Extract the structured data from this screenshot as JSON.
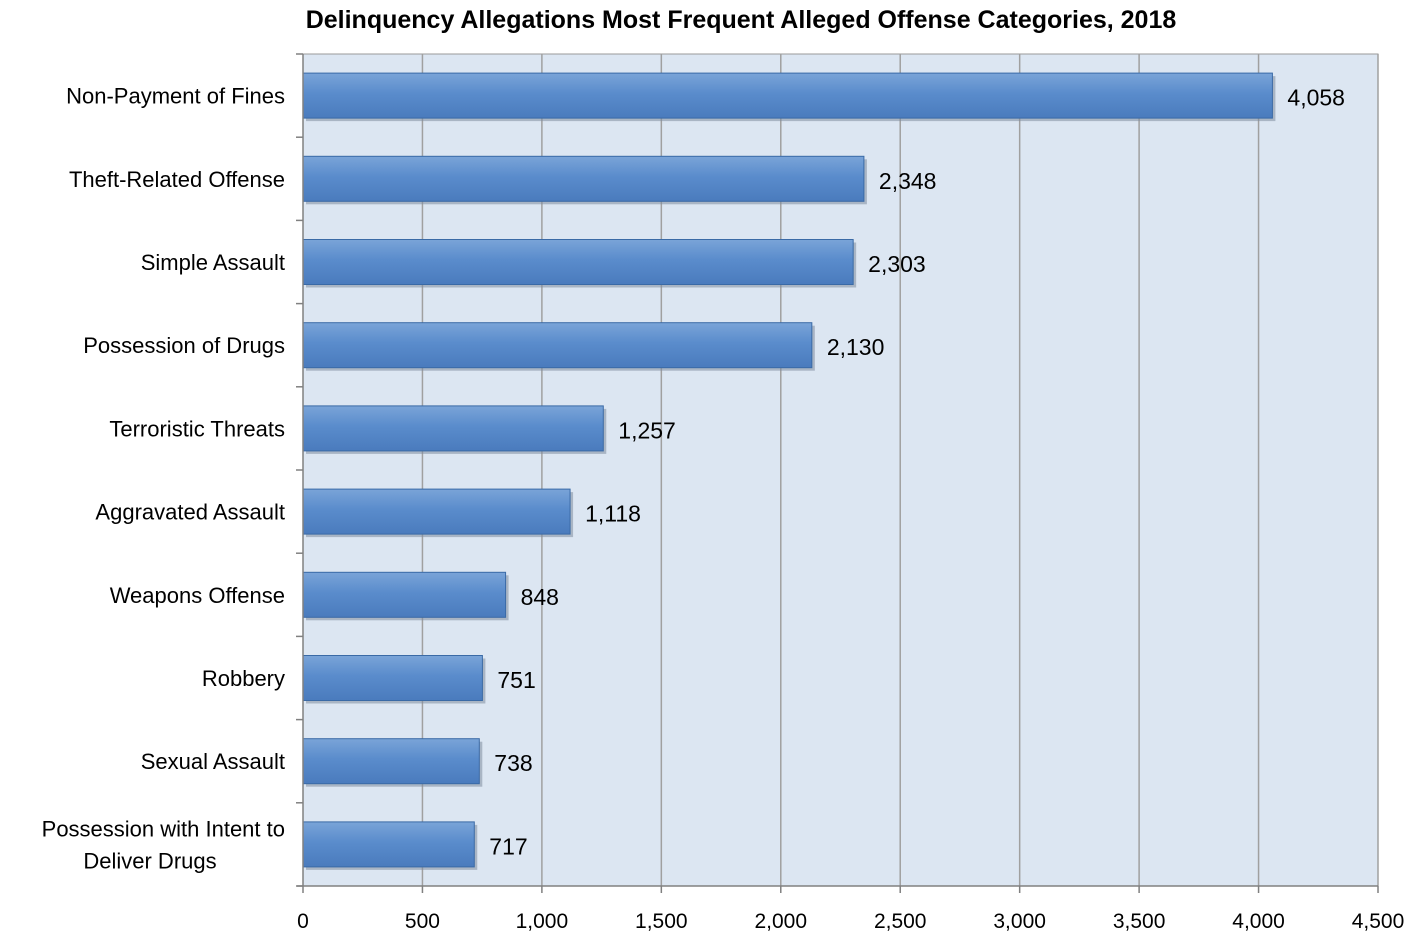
{
  "chart_data": {
    "type": "bar",
    "orientation": "horizontal",
    "title": "Delinquency Allegations Most Frequent Alleged Offense Categories, 2018",
    "xlabel": "",
    "ylabel": "",
    "xlim": [
      0,
      4500
    ],
    "x_ticks": [
      0,
      500,
      1000,
      1500,
      2000,
      2500,
      3000,
      3500,
      4000,
      4500
    ],
    "x_tick_labels": [
      "0",
      "500",
      "1,000",
      "1,500",
      "2,000",
      "2,500",
      "3,000",
      "3,500",
      "4,000",
      "4,500"
    ],
    "grid": "vertical",
    "categories": [
      [
        "Non-Payment of Fines"
      ],
      [
        "Theft-Related Offense"
      ],
      [
        "Simple Assault"
      ],
      [
        "Possession of Drugs"
      ],
      [
        "Terroristic Threats"
      ],
      [
        "Aggravated Assault"
      ],
      [
        "Weapons Offense"
      ],
      [
        "Robbery"
      ],
      [
        "Sexual Assault"
      ],
      [
        "Possession with Intent to",
        "Deliver Drugs"
      ]
    ],
    "values": [
      4058,
      2348,
      2303,
      2130,
      1257,
      1118,
      848,
      751,
      738,
      717
    ],
    "value_labels": [
      "4,058",
      "2,348",
      "2,303",
      "2,130",
      "1,257",
      "1,118",
      "848",
      "751",
      "738",
      "717"
    ],
    "colors": {
      "bar": "#5689c8",
      "bar_edge": "#3a6aa6",
      "plot_bg": "#dce6f2",
      "grid": "#a0a0a0"
    }
  }
}
